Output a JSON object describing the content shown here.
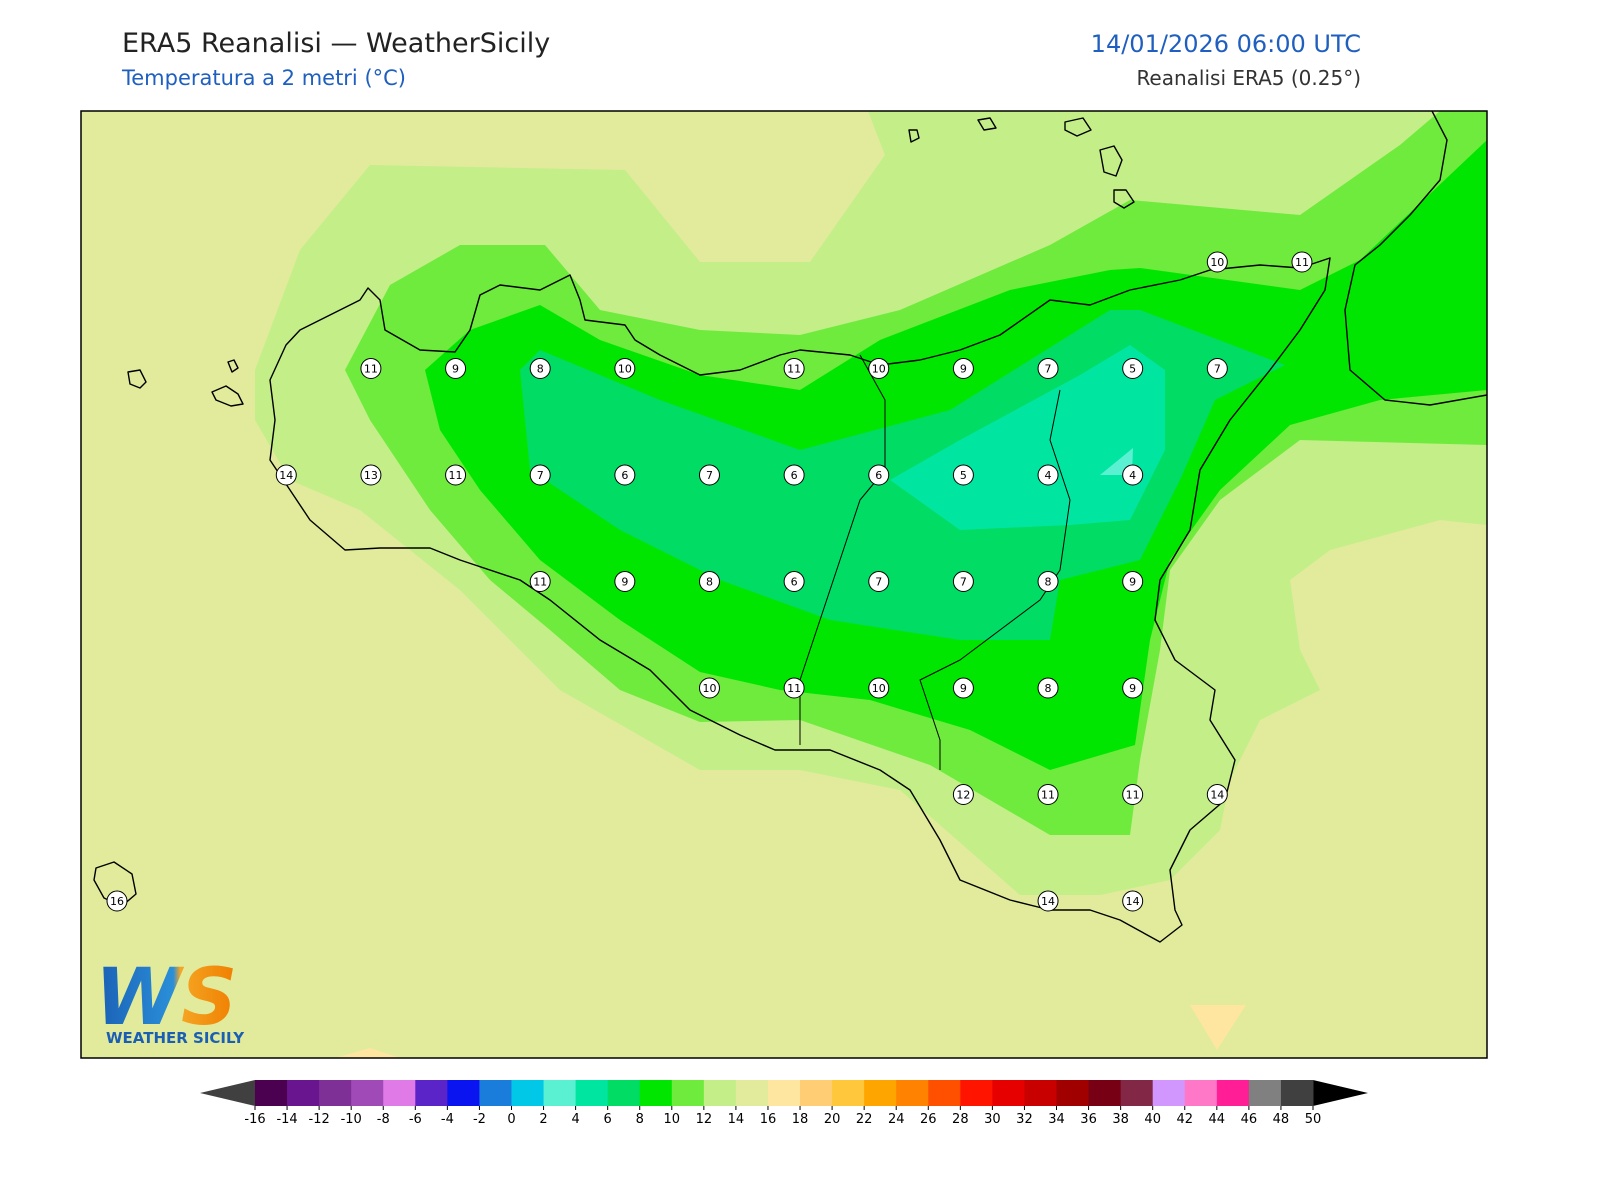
{
  "header": {
    "title": "ERA5 Reanalisi — WeatherSicily",
    "subtitle": "Temperatura a 2 metri (°C)",
    "datetime": "14/01/2026 06:00 UTC",
    "source": "Reanalisi ERA5 (0.25°)"
  },
  "stations": {
    "rows": [
      [
        null,
        null,
        null,
        null,
        null,
        null,
        null,
        null,
        null,
        null,
        null,
        null,
        null,
        10,
        11
      ],
      [
        null,
        null,
        null,
        11,
        9,
        8,
        10,
        null,
        11,
        10,
        9,
        7,
        5,
        7,
        null
      ],
      [
        null,
        null,
        14,
        13,
        11,
        7,
        6,
        7,
        6,
        6,
        5,
        4,
        4,
        null,
        null
      ],
      [
        null,
        null,
        null,
        null,
        null,
        11,
        9,
        8,
        6,
        7,
        7,
        8,
        9,
        null,
        null
      ],
      [
        null,
        null,
        null,
        null,
        null,
        null,
        null,
        10,
        11,
        10,
        9,
        8,
        9,
        null,
        null
      ],
      [
        null,
        null,
        null,
        null,
        null,
        null,
        null,
        null,
        null,
        null,
        12,
        11,
        11,
        14,
        null
      ],
      [
        16,
        null,
        null,
        null,
        null,
        null,
        null,
        null,
        null,
        null,
        null,
        14,
        14,
        null,
        null
      ]
    ]
  },
  "colorbar": {
    "levels": [
      -16,
      -14,
      -12,
      -10,
      -8,
      -6,
      -4,
      -2,
      0,
      2,
      4,
      6,
      8,
      10,
      12,
      14,
      16,
      18,
      20,
      22,
      24,
      26,
      28,
      30,
      32,
      34,
      36,
      38,
      40,
      42,
      44,
      46,
      48,
      50
    ],
    "colors": [
      "#4b0050",
      "#6a1590",
      "#7f3096",
      "#a04ab8",
      "#e07ae6",
      "#5a24c8",
      "#0a14f0",
      "#1a7ddc",
      "#00c8e6",
      "#5af0d2",
      "#00e6a0",
      "#00dc64",
      "#00e600",
      "#6eeb3c",
      "#c3ee88",
      "#e1eb9b",
      "#ffe6a0",
      "#ffcd73",
      "#ffc83c",
      "#ffa500",
      "#ff8200",
      "#ff5000",
      "#ff1400",
      "#e60000",
      "#c80000",
      "#a00000",
      "#780014",
      "#822846",
      "#d296ff",
      "#ff78c8",
      "#ff1e96",
      "#808080",
      "#404040"
    ],
    "extend_colors": [
      "#404040",
      "#000000"
    ]
  },
  "logo": {
    "text": "WS",
    "caption": "WEATHER SICILY"
  }
}
